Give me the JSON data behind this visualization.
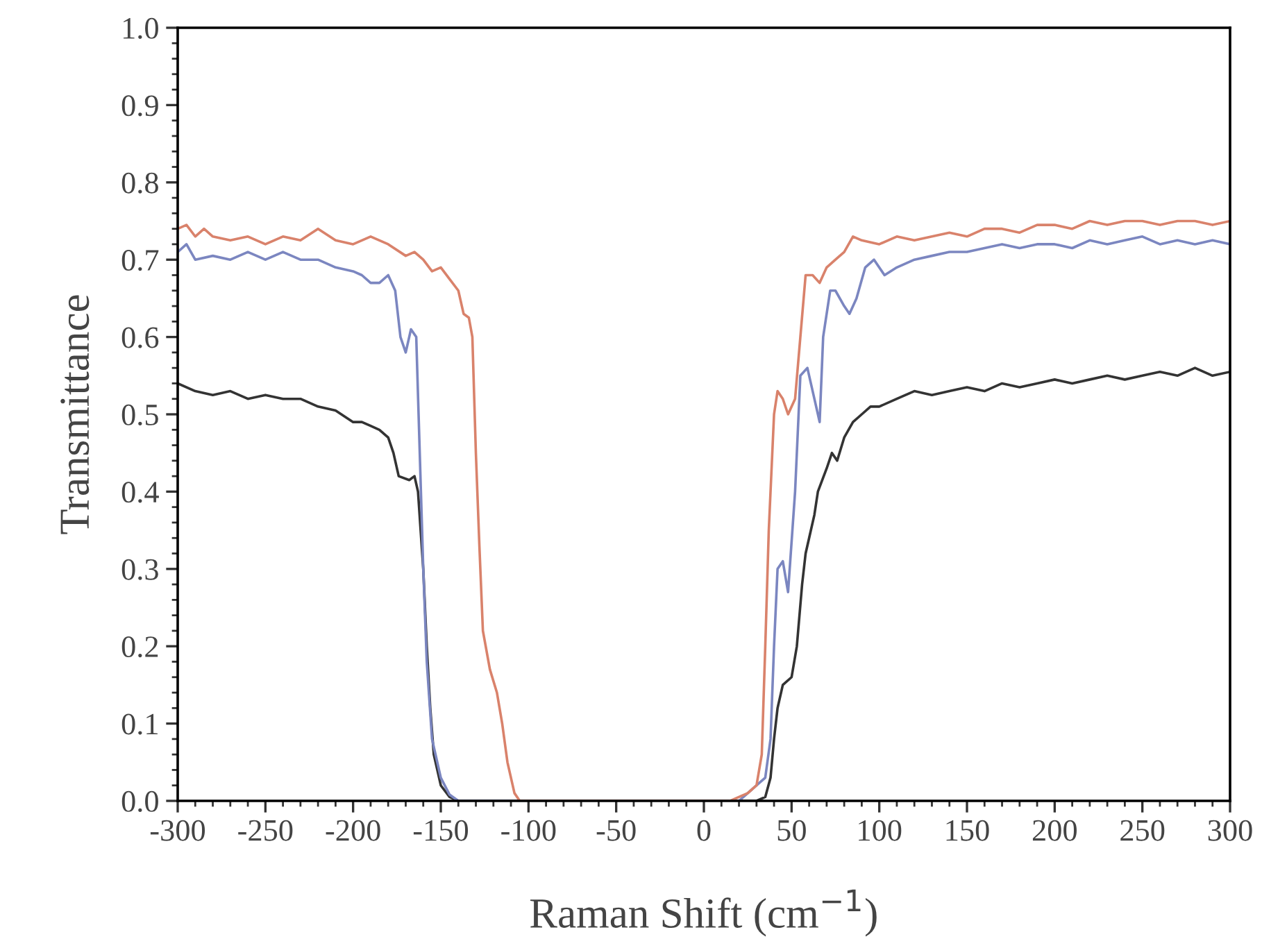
{
  "chart_data": {
    "type": "line",
    "xlabel": "Raman Shift (cm$^{−1}$)",
    "ylabel": "Transmittance",
    "xlim": [
      -300,
      300
    ],
    "xticks": [
      -300,
      -250,
      -200,
      -150,
      -100,
      -50,
      0,
      50,
      100,
      150,
      200,
      250,
      300
    ],
    "ylim": [
      0.0,
      1.0
    ],
    "yticks": [
      {
        "value": 0.0,
        "label": "0.0"
      },
      0.1,
      0.2,
      0.3,
      0.4,
      0.5,
      0.6,
      0.7,
      0.8,
      0.9,
      {
        "value": 1.0,
        "label": "1.0"
      }
    ],
    "grid": false,
    "legend": false,
    "marker": "none",
    "line_style": "solid",
    "series": [
      {
        "color": "#333333",
        "x": [
          -300,
          -290,
          -280,
          -270,
          -260,
          -250,
          -240,
          -230,
          -220,
          -210,
          -200,
          -195,
          -190,
          -185,
          -180,
          -177,
          -174,
          -168,
          -165,
          -163,
          -160,
          -158,
          -156,
          -154,
          -150,
          -145,
          -140,
          0,
          30,
          35,
          38,
          40,
          42,
          45,
          50,
          53,
          56,
          58,
          60,
          63,
          65,
          70,
          73,
          76,
          80,
          85,
          90,
          95,
          100,
          110,
          120,
          130,
          140,
          150,
          160,
          170,
          180,
          190,
          200,
          210,
          220,
          230,
          240,
          250,
          260,
          270,
          280,
          290,
          300
        ],
        "values": [
          0.54,
          0.53,
          0.525,
          0.53,
          0.52,
          0.525,
          0.52,
          0.52,
          0.51,
          0.505,
          0.49,
          0.49,
          0.485,
          0.48,
          0.47,
          0.45,
          0.42,
          0.415,
          0.42,
          0.4,
          0.3,
          0.2,
          0.12,
          0.06,
          0.02,
          0.005,
          0,
          0,
          0,
          0.005,
          0.03,
          0.08,
          0.12,
          0.15,
          0.16,
          0.2,
          0.28,
          0.32,
          0.34,
          0.37,
          0.4,
          0.43,
          0.45,
          0.44,
          0.47,
          0.49,
          0.5,
          0.51,
          0.51,
          0.52,
          0.53,
          0.525,
          0.53,
          0.535,
          0.53,
          0.54,
          0.535,
          0.54,
          0.545,
          0.54,
          0.545,
          0.55,
          0.545,
          0.55,
          0.555,
          0.55,
          0.56,
          0.55,
          0.555
        ]
      },
      {
        "color": "#7b86c0",
        "x": [
          -300,
          -295,
          -290,
          -280,
          -270,
          -260,
          -250,
          -240,
          -230,
          -220,
          -210,
          -200,
          -195,
          -190,
          -185,
          -180,
          -176,
          -173,
          -170,
          -167,
          -164,
          -162,
          -160,
          -158,
          -155,
          -150,
          -145,
          -140,
          20,
          25,
          30,
          35,
          38,
          40,
          42,
          45,
          48,
          52,
          55,
          59,
          63,
          66,
          68,
          72,
          75,
          80,
          83,
          87,
          92,
          97,
          103,
          110,
          120,
          130,
          140,
          150,
          160,
          170,
          180,
          190,
          200,
          210,
          220,
          230,
          240,
          250,
          260,
          270,
          280,
          290,
          300
        ],
        "values": [
          0.71,
          0.72,
          0.7,
          0.705,
          0.7,
          0.71,
          0.7,
          0.71,
          0.7,
          0.7,
          0.69,
          0.685,
          0.68,
          0.67,
          0.67,
          0.68,
          0.66,
          0.6,
          0.58,
          0.61,
          0.6,
          0.45,
          0.3,
          0.18,
          0.08,
          0.03,
          0.008,
          0,
          0,
          0.01,
          0.02,
          0.03,
          0.08,
          0.2,
          0.3,
          0.31,
          0.27,
          0.4,
          0.55,
          0.56,
          0.52,
          0.49,
          0.6,
          0.66,
          0.66,
          0.64,
          0.63,
          0.65,
          0.69,
          0.7,
          0.68,
          0.69,
          0.7,
          0.705,
          0.71,
          0.71,
          0.715,
          0.72,
          0.715,
          0.72,
          0.72,
          0.715,
          0.725,
          0.72,
          0.725,
          0.73,
          0.72,
          0.725,
          0.72,
          0.725,
          0.72
        ]
      },
      {
        "color": "#d9826b",
        "x": [
          -300,
          -295,
          -290,
          -285,
          -280,
          -270,
          -260,
          -250,
          -240,
          -230,
          -220,
          -210,
          -200,
          -190,
          -180,
          -170,
          -165,
          -160,
          -155,
          -150,
          -145,
          -140,
          -137,
          -134,
          -132,
          -130,
          -128,
          -126,
          -122,
          -118,
          -115,
          -112,
          -108,
          -105,
          15,
          20,
          25,
          30,
          33,
          35,
          37,
          40,
          42,
          45,
          48,
          52,
          55,
          58,
          62,
          66,
          70,
          75,
          80,
          85,
          90,
          100,
          110,
          120,
          130,
          140,
          150,
          160,
          170,
          180,
          190,
          200,
          210,
          220,
          230,
          240,
          250,
          260,
          270,
          280,
          290,
          300
        ],
        "values": [
          0.74,
          0.745,
          0.73,
          0.74,
          0.73,
          0.725,
          0.73,
          0.72,
          0.73,
          0.725,
          0.74,
          0.725,
          0.72,
          0.73,
          0.72,
          0.705,
          0.71,
          0.7,
          0.685,
          0.69,
          0.675,
          0.66,
          0.63,
          0.625,
          0.6,
          0.45,
          0.33,
          0.22,
          0.17,
          0.14,
          0.1,
          0.05,
          0.01,
          0,
          0,
          0.005,
          0.01,
          0.02,
          0.06,
          0.2,
          0.35,
          0.5,
          0.53,
          0.52,
          0.5,
          0.52,
          0.6,
          0.68,
          0.68,
          0.67,
          0.69,
          0.7,
          0.71,
          0.73,
          0.725,
          0.72,
          0.73,
          0.725,
          0.73,
          0.735,
          0.73,
          0.74,
          0.74,
          0.735,
          0.745,
          0.745,
          0.74,
          0.75,
          0.745,
          0.75,
          0.75,
          0.745,
          0.75,
          0.75,
          0.745,
          0.75
        ]
      }
    ]
  }
}
